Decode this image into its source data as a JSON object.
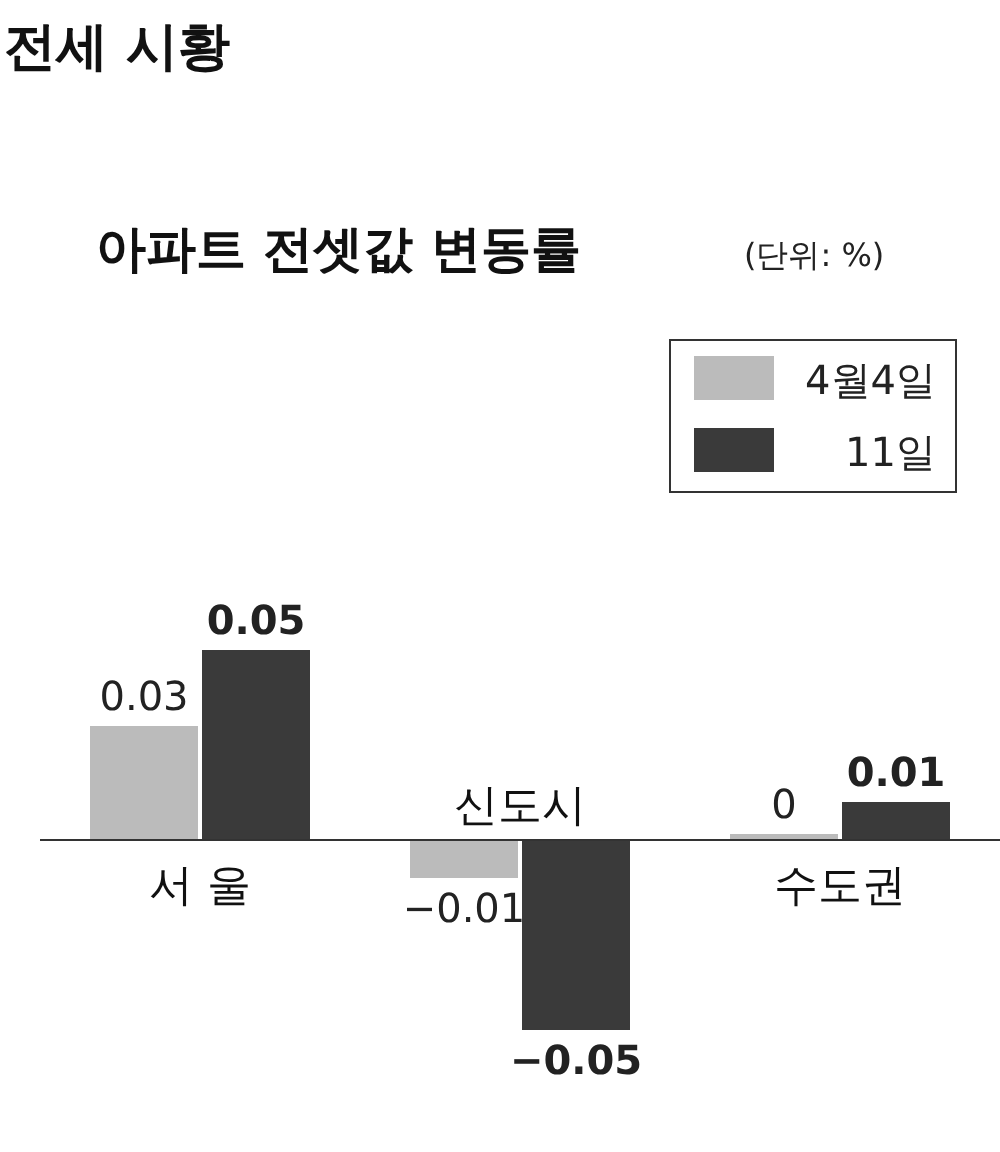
{
  "chart_data": {
    "type": "bar",
    "title": "전세 시황",
    "subtitle": "아파트 전셋값 변동률",
    "annotations": [
      "(단위: %)"
    ],
    "categories": [
      "서 울",
      "신도시",
      "수도권"
    ],
    "series": [
      {
        "name": "4월4일",
        "color": "#bbbbbb",
        "values": [
          0.03,
          -0.01,
          0
        ]
      },
      {
        "name": "11일",
        "color": "#3a3a3a",
        "values": [
          0.05,
          -0.05,
          0.01
        ]
      }
    ],
    "data_labels": true,
    "legend": "top right"
  }
}
